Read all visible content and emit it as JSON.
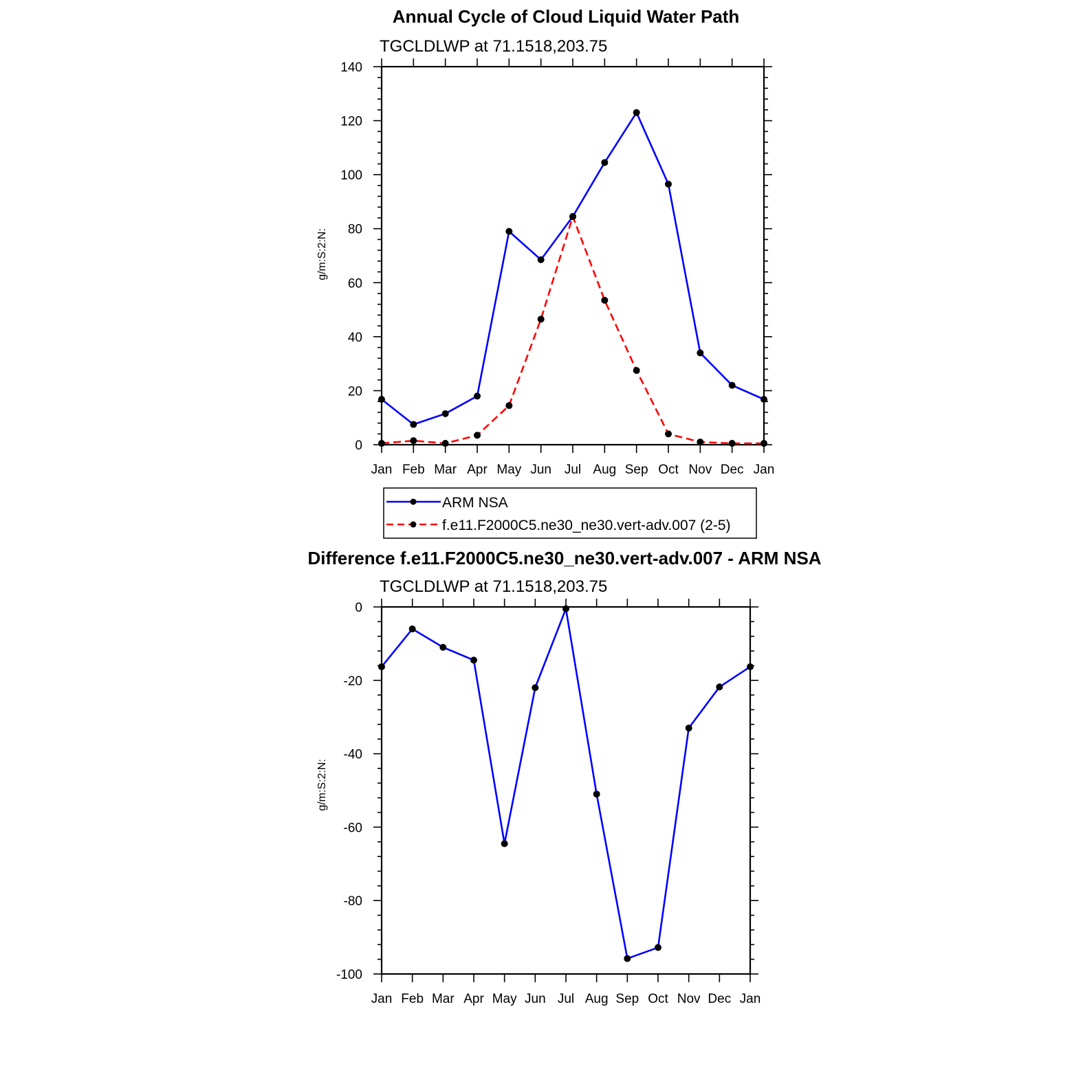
{
  "chart_data": [
    {
      "type": "line",
      "title": "Annual Cycle of Cloud Liquid Water Path",
      "subtitle": "TGCLDLWP at 71.1518,203.75",
      "ylabel": "g/m:S:2:N:",
      "xlabel": "",
      "ylim": [
        0,
        140
      ],
      "yticks": [
        0,
        20,
        40,
        60,
        80,
        100,
        120,
        140
      ],
      "categories": [
        "Jan",
        "Feb",
        "Mar",
        "Apr",
        "May",
        "Jun",
        "Jul",
        "Aug",
        "Sep",
        "Oct",
        "Nov",
        "Dec",
        "Jan"
      ],
      "series": [
        {
          "name": "ARM NSA",
          "color": "#0000ff",
          "dash": "solid",
          "values": [
            16.8,
            7.5,
            11.5,
            18,
            79,
            68.5,
            84.5,
            104.5,
            123,
            96.5,
            34,
            22,
            16.8
          ]
        },
        {
          "name": "f.e11.F2000C5.ne30_ne30.vert-adv.007 (2-5)",
          "color": "#ff0000",
          "dash": "dashed",
          "values": [
            0.5,
            1.5,
            0.5,
            3.5,
            14.5,
            46.5,
            84.5,
            53.5,
            27.5,
            4,
            1,
            0.5,
            0.5
          ]
        }
      ],
      "legend": "below"
    },
    {
      "type": "line",
      "title": "Difference f.e11.F2000C5.ne30_ne30.vert-adv.007 - ARM NSA",
      "subtitle": "TGCLDLWP at 71.1518,203.75",
      "ylabel": "g/m:S:2:N:",
      "xlabel": "",
      "ylim": [
        -100,
        0
      ],
      "yticks": [
        -100,
        -80,
        -60,
        -40,
        -20,
        0
      ],
      "categories": [
        "Jan",
        "Feb",
        "Mar",
        "Apr",
        "May",
        "Jun",
        "Jul",
        "Aug",
        "Sep",
        "Oct",
        "Nov",
        "Dec",
        "Jan"
      ],
      "series": [
        {
          "name": "Difference",
          "color": "#0000ff",
          "dash": "solid",
          "values": [
            -16.3,
            -6,
            -11,
            -14.5,
            -64.5,
            -22,
            -0.5,
            -51,
            -95.8,
            -92.8,
            -33,
            -21.8,
            -16.3
          ]
        }
      ]
    }
  ]
}
